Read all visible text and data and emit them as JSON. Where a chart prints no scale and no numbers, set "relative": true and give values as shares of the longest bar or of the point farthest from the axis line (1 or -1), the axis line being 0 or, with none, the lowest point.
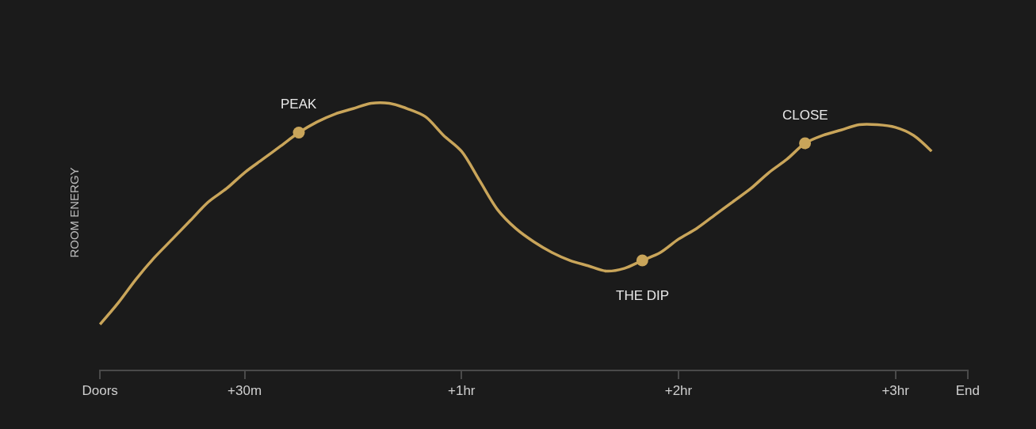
{
  "chart_data": {
    "type": "line",
    "relative": true,
    "ylabel": "ROOM ENERGY",
    "categories": [
      "Doors",
      null,
      null,
      null,
      null,
      null,
      null,
      null,
      "+30m",
      null,
      null,
      null,
      null,
      null,
      null,
      null,
      null,
      null,
      null,
      null,
      "+1hr",
      null,
      null,
      null,
      null,
      null,
      null,
      null,
      null,
      null,
      null,
      null,
      "+2hr",
      null,
      null,
      null,
      null,
      null,
      null,
      null,
      null,
      null,
      null,
      null,
      "+3hr",
      null,
      null,
      null,
      "End"
    ],
    "line_style": "solid",
    "series": [
      {
        "color": "#c9a55a",
        "marker": "none",
        "values": [
          0.17,
          0.25,
          0.34,
          0.42,
          0.49,
          0.56,
          0.63,
          0.68,
          0.74,
          0.79,
          0.84,
          0.89,
          0.93,
          0.96,
          0.98,
          1.0,
          1.0,
          0.98,
          0.95,
          0.88,
          0.82,
          0.71,
          0.6,
          0.53,
          0.48,
          0.44,
          0.41,
          0.39,
          0.37,
          0.38,
          0.41,
          0.44,
          0.49,
          0.53,
          0.58,
          0.63,
          0.68,
          0.74,
          0.79,
          0.85,
          0.88,
          0.9,
          0.92,
          0.92,
          0.91,
          0.88,
          0.82,
          null,
          null
        ]
      },
      {
        "type": "scatter",
        "color": "#c9a55a",
        "marker": "circle",
        "values": [
          null,
          null,
          null,
          null,
          null,
          null,
          null,
          null,
          null,
          null,
          null,
          0.89,
          null,
          null,
          null,
          null,
          null,
          null,
          null,
          null,
          null,
          null,
          null,
          null,
          null,
          null,
          null,
          null,
          null,
          null,
          0.41,
          null,
          null,
          null,
          null,
          null,
          null,
          null,
          null,
          0.85,
          null,
          null,
          null,
          null,
          null,
          null,
          null,
          null,
          null
        ]
      }
    ],
    "annotations": [
      "PEAK",
      "THE DIP",
      "CLOSE"
    ]
  }
}
